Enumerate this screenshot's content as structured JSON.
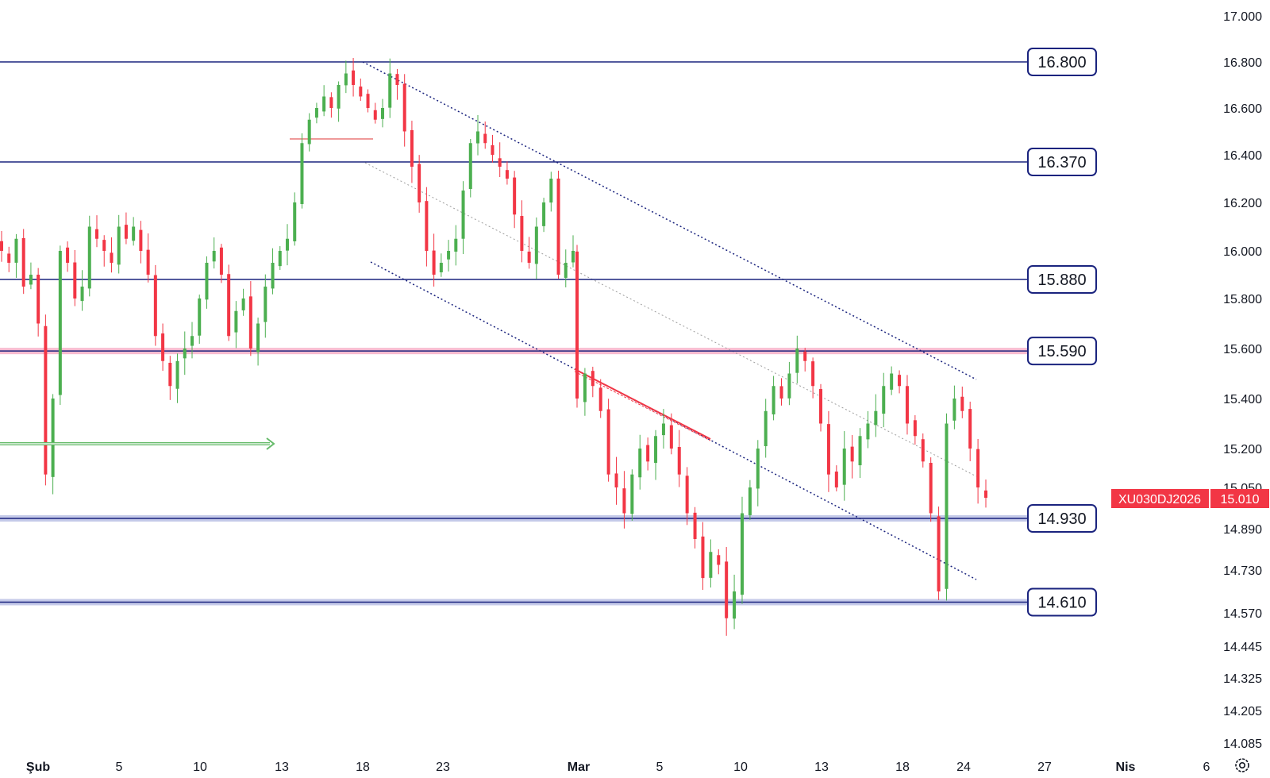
{
  "chart_data": {
    "type": "candlestick",
    "symbol_label": "XU030DJ2026",
    "last_price_label": "15.010",
    "last_price": 15010,
    "y_axis": {
      "ticks": [
        "17.000",
        "16.800",
        "16.600",
        "16.400",
        "16.200",
        "16.000",
        "15.800",
        "15.600",
        "15.400",
        "15.200",
        "15.050",
        "14.890",
        "14.730",
        "14.570",
        "14.445",
        "14.325",
        "14.205",
        "14.085"
      ]
    },
    "x_axis": {
      "ticks": [
        {
          "label": "Şub",
          "bold": true
        },
        {
          "label": "5",
          "bold": false
        },
        {
          "label": "10",
          "bold": false
        },
        {
          "label": "13",
          "bold": false
        },
        {
          "label": "18",
          "bold": false
        },
        {
          "label": "23",
          "bold": false
        },
        {
          "label": "Mar",
          "bold": true
        },
        {
          "label": "5",
          "bold": false
        },
        {
          "label": "10",
          "bold": false
        },
        {
          "label": "13",
          "bold": false
        },
        {
          "label": "18",
          "bold": false
        },
        {
          "label": "24",
          "bold": false
        },
        {
          "label": "27",
          "bold": false
        },
        {
          "label": "Nis",
          "bold": true
        },
        {
          "label": "6",
          "bold": false
        }
      ]
    },
    "levels": [
      {
        "label": "16.800",
        "value": 16800
      },
      {
        "label": "16.370",
        "value": 16370
      },
      {
        "label": "15.880",
        "value": 15880
      },
      {
        "label": "15.590",
        "value": 15590,
        "highlight": "#f8bbd0"
      },
      {
        "label": "14.930",
        "value": 14930,
        "highlight": "#c5cae9"
      },
      {
        "label": "14.610",
        "value": 14610,
        "highlight": "#c5cae9"
      }
    ],
    "candles_close": [
      16000,
      15950,
      16050,
      15850,
      15900,
      15700,
      15100,
      15400,
      16000,
      15950,
      15800,
      15850,
      16100,
      16050,
      16000,
      15950,
      16100,
      16050,
      16100,
      16000,
      15900,
      15650,
      15550,
      15450,
      15550,
      15600,
      15650,
      15800,
      15950,
      16000,
      15900,
      15650,
      15750,
      15800,
      15600,
      15700,
      15850,
      15950,
      16000,
      16050,
      16200,
      16450,
      16550,
      16600,
      16650,
      16600,
      16700,
      16750,
      16700,
      16650,
      16600,
      16550,
      16600,
      16750,
      16700,
      16500,
      16350,
      16200,
      16000,
      15900,
      15950,
      16000,
      16050,
      16250,
      16450,
      16500,
      16450,
      16400,
      16350,
      16300,
      16150,
      16000,
      15950,
      16100,
      16200,
      16300,
      15900,
      15950,
      16000,
      15400,
      15500,
      15450,
      15350,
      15100,
      15050,
      14950,
      15100,
      15200,
      15150,
      15250,
      15300,
      15200,
      15100,
      14950,
      14850,
      14700,
      14800,
      14750,
      14550,
      14650,
      14950,
      15050,
      15200,
      15350,
      15450,
      15400,
      15500,
      15600,
      15550,
      15450,
      15300,
      15100,
      15050,
      15200,
      15150,
      15250,
      15300,
      15350,
      15450,
      15500,
      15450,
      15300,
      15250,
      15150,
      14950,
      14650,
      15300,
      15400,
      15350,
      15200,
      15050,
      15010
    ]
  },
  "colors": {
    "up": "#4caf50",
    "down": "#f23645",
    "level_line": "#1a237e",
    "channel": "#1a237e",
    "arrow": "#66bb6a",
    "flag": "#f23645"
  },
  "icons": {
    "settings": "gear-icon"
  }
}
